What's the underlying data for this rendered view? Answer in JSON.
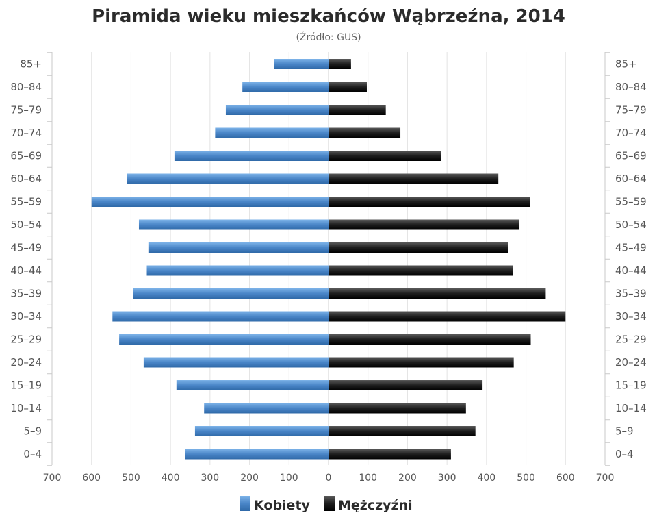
{
  "chart_data": {
    "type": "bar",
    "title": "Piramida wieku mieszkańców Wąbrzeźna, 2014",
    "subtitle": "(Źródło: GUS)",
    "categories": [
      "85+",
      "80–84",
      "75–79",
      "70–74",
      "65–69",
      "60–64",
      "55–59",
      "50–54",
      "45–49",
      "40–44",
      "35–39",
      "30–34",
      "25–29",
      "20–24",
      "15–19",
      "10–14",
      "5–9",
      "0–4"
    ],
    "series": [
      {
        "name": "Kobiety",
        "color": "#4a86c8",
        "values": [
          138,
          218,
          260,
          287,
          390,
          510,
          600,
          480,
          456,
          460,
          495,
          547,
          530,
          468,
          385,
          315,
          338,
          363
        ]
      },
      {
        "name": "Mężczyźni",
        "color": "#1a1a1a",
        "values": [
          57,
          97,
          145,
          182,
          285,
          430,
          510,
          482,
          455,
          467,
          550,
          600,
          512,
          469,
          390,
          348,
          372,
          310
        ]
      }
    ],
    "xticks": [
      "700",
      "600",
      "500",
      "400",
      "300",
      "200",
      "100",
      "0",
      "100",
      "200",
      "300",
      "400",
      "500",
      "600",
      "700"
    ],
    "xlim": [
      -700,
      700
    ],
    "grid": true,
    "legend_position": "bottom"
  }
}
